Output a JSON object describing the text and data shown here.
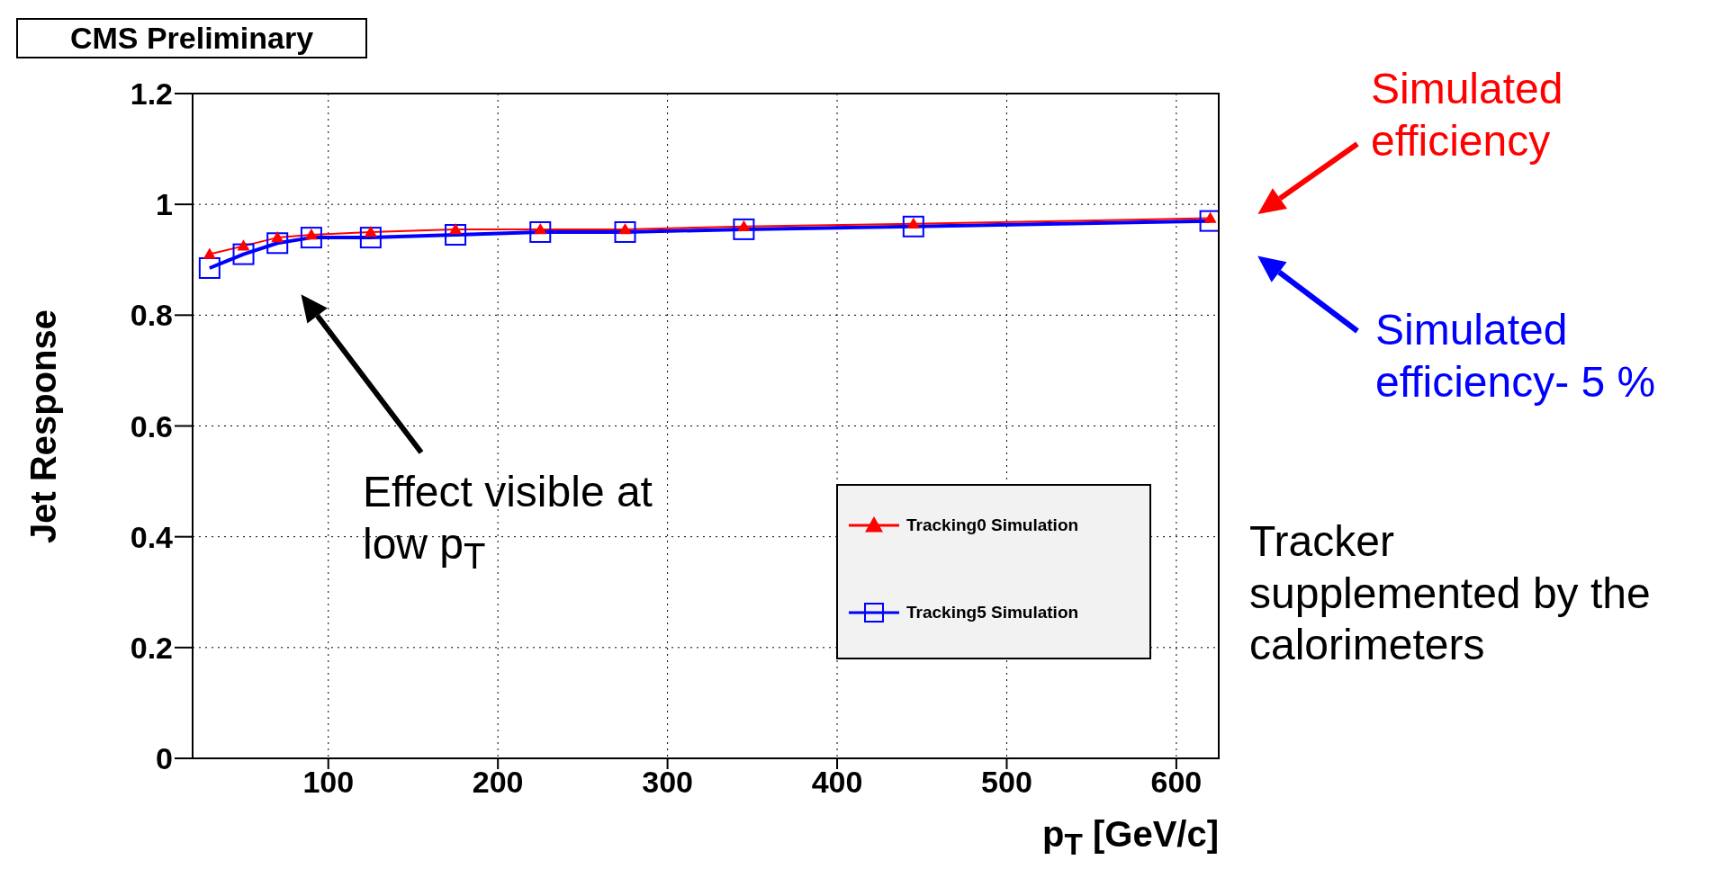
{
  "chart_data": {
    "type": "line",
    "xlabel": "p$_{T}$ [GeV/c]",
    "ylabel": "Jet Response",
    "x": [
      30,
      50,
      70,
      90,
      125,
      175,
      225,
      275,
      345,
      445,
      620
    ],
    "series": [
      {
        "name": "Tracking0 Simulation",
        "color": "#ff0000",
        "marker": "triangle",
        "values": [
          0.91,
          0.925,
          0.94,
          0.945,
          0.95,
          0.955,
          0.955,
          0.955,
          0.96,
          0.965,
          0.975
        ]
      },
      {
        "name": "Tracking5 Simulation",
        "color": "#0000ff",
        "marker": "square",
        "values": [
          0.885,
          0.91,
          0.93,
          0.94,
          0.94,
          0.945,
          0.95,
          0.95,
          0.955,
          0.96,
          0.97
        ]
      }
    ],
    "xlim": [
      20,
      625
    ],
    "xticks": [
      100,
      200,
      300,
      400,
      500,
      600
    ],
    "ylim": [
      0,
      1.2
    ],
    "yticks": [
      0,
      0.2,
      0.4,
      0.6,
      0.8,
      1,
      1.2
    ],
    "grid": true,
    "legend": "bottom right",
    "annotations": [
      "Simulated efficiency",
      "Simulated efficiency- 5 %",
      "Effect visible at low p$_{T}$",
      "CMS Preliminary",
      "Tracker supplemented by the calorimeters"
    ]
  }
}
